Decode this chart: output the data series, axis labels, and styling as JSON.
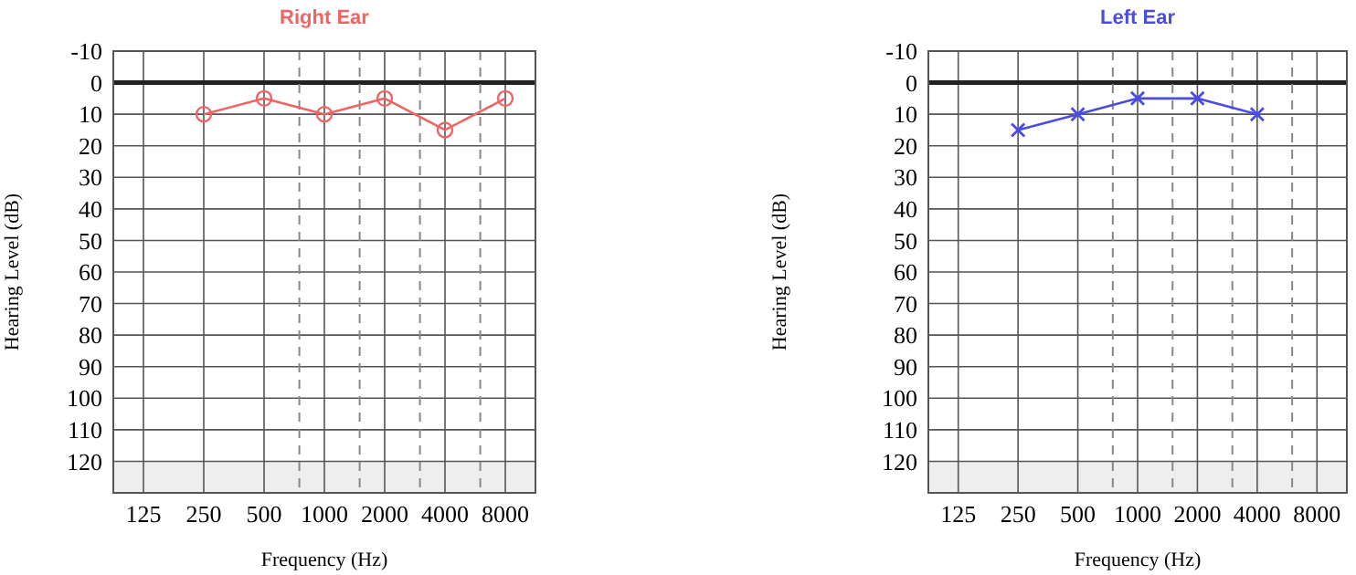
{
  "chart_data": [
    {
      "type": "line",
      "title": "Right Ear",
      "xlabel": "Frequency (Hz)",
      "ylabel": "Hearing Level (dB)",
      "log": "x",
      "x": [
        250,
        500,
        1000,
        2000,
        4000,
        8000
      ],
      "series": [
        {
          "color": "#f06464",
          "values": [
            10,
            5,
            10,
            5,
            15,
            5
          ],
          "marker": "circle"
        }
      ],
      "xlim": [
        88.4,
        11314
      ],
      "xticks": [
        125,
        250,
        500,
        1000,
        2000,
        4000,
        8000
      ],
      "ylim": [
        130,
        -10
      ],
      "yticks": [
        -10,
        0,
        10,
        20,
        30,
        40,
        50,
        60,
        70,
        80,
        90,
        100,
        110,
        120
      ],
      "grid": true,
      "ref_lines": [
        {
          "axis": "y",
          "value": 0,
          "color": "#222222",
          "line_style": "solid"
        },
        {
          "axis": "x",
          "value": 750,
          "color": "#888888",
          "line_style": "dashed"
        },
        {
          "axis": "x",
          "value": 1500,
          "color": "#888888",
          "line_style": "dashed"
        },
        {
          "axis": "x",
          "value": 3000,
          "color": "#888888",
          "line_style": "dashed"
        },
        {
          "axis": "x",
          "value": 6000,
          "color": "#888888",
          "line_style": "dashed"
        }
      ],
      "bands": [
        {
          "axis": "y",
          "from": 120,
          "to": 130,
          "color": "#eeeeee"
        }
      ]
    },
    {
      "type": "line",
      "title": "Left Ear",
      "xlabel": "Frequency (Hz)",
      "ylabel": "Hearing Level (dB)",
      "log": "x",
      "x": [
        250,
        500,
        1000,
        2000,
        4000
      ],
      "series": [
        {
          "color": "#4b4be6",
          "values": [
            15,
            10,
            5,
            5,
            10
          ],
          "marker": "cross"
        }
      ],
      "xlim": [
        88.4,
        11314
      ],
      "xticks": [
        125,
        250,
        500,
        1000,
        2000,
        4000,
        8000
      ],
      "ylim": [
        130,
        -10
      ],
      "yticks": [
        -10,
        0,
        10,
        20,
        30,
        40,
        50,
        60,
        70,
        80,
        90,
        100,
        110,
        120
      ],
      "grid": true,
      "ref_lines": [
        {
          "axis": "y",
          "value": 0,
          "color": "#222222",
          "line_style": "solid"
        },
        {
          "axis": "x",
          "value": 750,
          "color": "#888888",
          "line_style": "dashed"
        },
        {
          "axis": "x",
          "value": 1500,
          "color": "#888888",
          "line_style": "dashed"
        },
        {
          "axis": "x",
          "value": 3000,
          "color": "#888888",
          "line_style": "dashed"
        },
        {
          "axis": "x",
          "value": 6000,
          "color": "#888888",
          "line_style": "dashed"
        }
      ],
      "bands": [
        {
          "axis": "y",
          "from": 120,
          "to": 130,
          "color": "#eeeeee"
        }
      ]
    }
  ]
}
